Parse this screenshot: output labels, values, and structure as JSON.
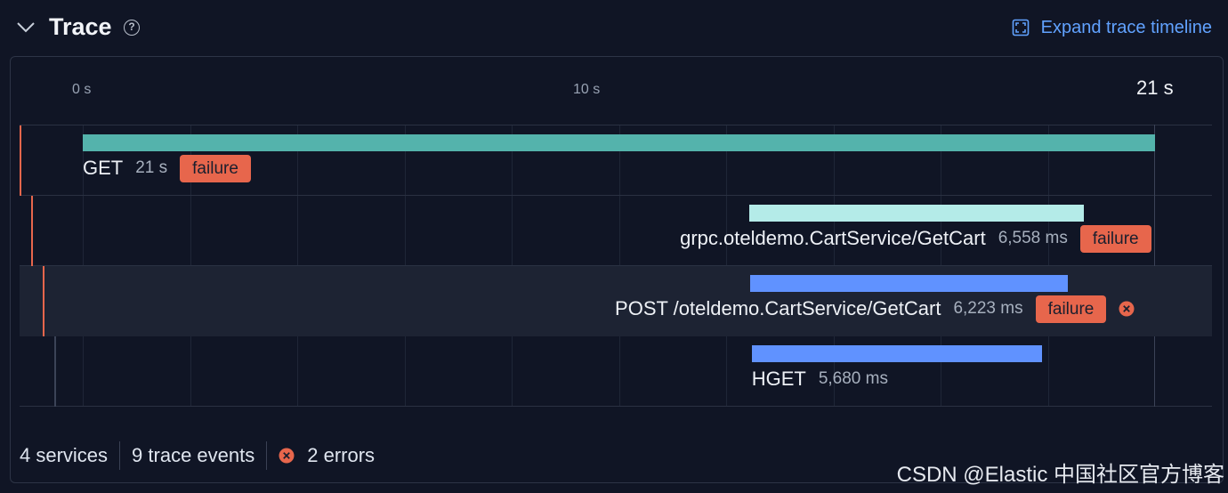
{
  "header": {
    "title": "Trace",
    "help_icon": "question-circle-icon",
    "expand_label": "Expand trace timeline",
    "expand_icon": "expand-frame-icon"
  },
  "axis": {
    "start_label": "0 s",
    "mid_label": "10 s",
    "end_label": "21 s",
    "unit": "s",
    "range": [
      0,
      21
    ]
  },
  "spans": [
    {
      "name": "GET",
      "duration": "21 s",
      "status": "failure",
      "start_s": 0,
      "duration_s": 21,
      "color": "#54b3ac",
      "rail_color": "#e7664c",
      "has_error_icon": false
    },
    {
      "name": "grpc.oteldemo.CartService/GetCart",
      "duration": "6,558 ms",
      "status": "failure",
      "start_s": 13.05,
      "duration_s": 6.558,
      "color": "#b4ebe8",
      "rail_color": "#e7664c",
      "has_error_icon": false
    },
    {
      "name": "POST /oteldemo.CartService/GetCart",
      "duration": "6,223 ms",
      "status": "failure",
      "start_s": 13.07,
      "duration_s": 6.223,
      "color": "#6092ff",
      "rail_color": "#e7664c",
      "has_error_icon": true
    },
    {
      "name": "HGET",
      "duration": "5,680 ms",
      "status": "",
      "start_s": 13.1,
      "duration_s": 5.68,
      "color": "#6092ff",
      "rail_color": "#3b4357",
      "has_error_icon": false
    }
  ],
  "footer": {
    "services": "4 services",
    "events": "9 trace events",
    "errors": "2 errors"
  },
  "colors": {
    "failure": "#e7664c",
    "link": "#61a2ff",
    "background": "#101525"
  },
  "watermark": "CSDN @Elastic 中国社区官方博客"
}
